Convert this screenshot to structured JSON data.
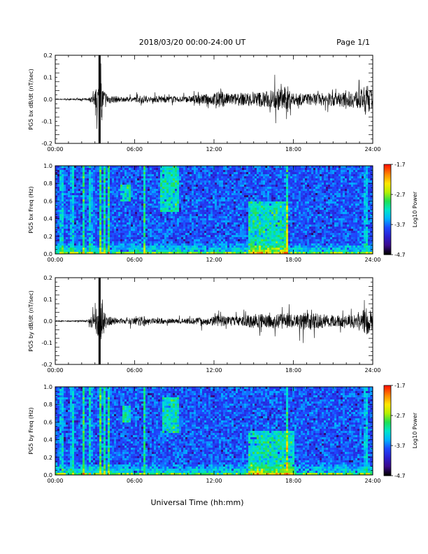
{
  "header": {
    "title": "2018/03/20  00:00-24:00 UT",
    "page": "Page 1/1"
  },
  "footer": {
    "xlabel": "Universal Time (hh:mm)"
  },
  "colors": {
    "trace": "#000000",
    "background": "#ffffff",
    "colormap": [
      "#000000",
      "#3b0a8c",
      "#2a1fd0",
      "#1e48ff",
      "#00b4ff",
      "#00e6c8",
      "#20e050",
      "#b8f000",
      "#ffe600",
      "#ff8800",
      "#ff1a00"
    ]
  },
  "x_tick_labels": [
    "00:00",
    "06:00",
    "12:00",
    "18:00",
    "24:00"
  ],
  "chart_data": [
    {
      "type": "line",
      "ylabel": "PG5 bx dB/dt (nT/sec)",
      "xlim": [
        0,
        24
      ],
      "ylim": [
        -0.2,
        0.2
      ],
      "yticks": [
        "0.2",
        "0.1",
        "0.0",
        "-0.1",
        "-0.2"
      ],
      "ytick_values": [
        0.2,
        0.1,
        0.0,
        -0.1,
        -0.2
      ],
      "series": [
        {
          "x": [
            0,
            1,
            2,
            2.5,
            3.0,
            3.4,
            3.6,
            4.0,
            5,
            6.0,
            6.8,
            7,
            8,
            9,
            10,
            11,
            12,
            12.3,
            13,
            14,
            15,
            16,
            17.6,
            18,
            19,
            20,
            21,
            22,
            23,
            23.6,
            24
          ],
          "values": [
            0.004,
            0.006,
            0.008,
            0.01,
            0.06,
            0.2,
            0.1,
            0.04,
            0.02,
            0.02,
            0.04,
            0.02,
            0.03,
            0.025,
            0.025,
            0.04,
            0.05,
            0.08,
            0.05,
            0.05,
            0.06,
            0.07,
            0.11,
            0.05,
            0.05,
            0.05,
            0.06,
            0.06,
            0.08,
            0.12,
            0.07
          ]
        }
      ]
    },
    {
      "type": "heatmap",
      "ylabel": "PG5 bx Freq (Hz)",
      "xlim": [
        0,
        24
      ],
      "ylim": [
        0.0,
        1.0
      ],
      "yticks": [
        "1.0",
        "0.8",
        "0.6",
        "0.4",
        "0.2",
        "0.0"
      ],
      "ytick_values": [
        1.0,
        0.8,
        0.6,
        0.4,
        0.2,
        0.0
      ],
      "colorbar": {
        "label": "Log10 Power",
        "ticks": [
          "-1.7",
          "-2.7",
          "-3.7",
          "-4.7"
        ],
        "tick_values": [
          -1.7,
          -2.7,
          -3.7,
          -4.7
        ],
        "range": [
          -4.7,
          -1.7
        ]
      },
      "features": [
        {
          "desc": "broadband bursts",
          "x_hours": [
            0.4,
            1.2,
            2.1,
            2.6,
            3.3,
            3.6,
            4.0,
            6.7,
            17.4,
            23.4
          ]
        },
        {
          "desc": "enhanced band",
          "x_range": [
            14.5,
            17.5
          ],
          "y_range": [
            0.0,
            0.6
          ]
        },
        {
          "desc": "patch",
          "x_range": [
            4.9,
            5.6
          ],
          "y_range": [
            0.6,
            0.8
          ]
        },
        {
          "desc": "patch",
          "x_range": [
            7.8,
            9.2
          ],
          "y_range": [
            0.5,
            1.0
          ]
        }
      ]
    },
    {
      "type": "line",
      "ylabel": "PG5 by dB/dt (nT/sec)",
      "xlim": [
        0,
        24
      ],
      "ylim": [
        -0.2,
        0.2
      ],
      "yticks": [
        "0.2",
        "0.1",
        "0.0",
        "-0.1",
        "-0.2"
      ],
      "ytick_values": [
        0.2,
        0.1,
        0.0,
        -0.1,
        -0.2
      ],
      "series": [
        {
          "x": [
            0,
            1,
            2,
            2.5,
            3.0,
            3.4,
            3.6,
            4.0,
            5,
            6.0,
            6.8,
            7,
            8,
            9,
            10,
            11,
            12,
            12.3,
            13,
            14,
            15,
            16,
            17.6,
            18,
            19,
            20,
            21,
            22,
            23,
            23.6,
            24
          ],
          "values": [
            0.004,
            0.005,
            0.008,
            0.012,
            0.08,
            0.2,
            0.1,
            0.04,
            0.02,
            0.03,
            0.05,
            0.02,
            0.025,
            0.02,
            0.025,
            0.03,
            0.04,
            0.05,
            0.04,
            0.04,
            0.06,
            0.06,
            0.07,
            0.05,
            0.08,
            0.06,
            0.05,
            0.05,
            0.07,
            0.12,
            0.08
          ]
        }
      ]
    },
    {
      "type": "heatmap",
      "ylabel": "PG5 by Freq (Hz)",
      "xlim": [
        0,
        24
      ],
      "ylim": [
        0.0,
        1.0
      ],
      "yticks": [
        "1.0",
        "0.8",
        "0.6",
        "0.4",
        "0.2",
        "0.0"
      ],
      "ytick_values": [
        1.0,
        0.8,
        0.6,
        0.4,
        0.2,
        0.0
      ],
      "colorbar": {
        "label": "Log10 Power",
        "ticks": [
          "-1.7",
          "-2.7",
          "-3.7",
          "-4.7"
        ],
        "tick_values": [
          -1.7,
          -2.7,
          -3.7,
          -4.7
        ],
        "range": [
          -4.7,
          -1.7
        ]
      },
      "features": [
        {
          "desc": "broadband bursts",
          "x_hours": [
            0.4,
            1.2,
            2.1,
            2.6,
            3.3,
            3.6,
            4.0,
            6.7,
            17.4,
            23.4
          ]
        },
        {
          "desc": "enhanced band",
          "x_range": [
            14.5,
            18.0
          ],
          "y_range": [
            0.0,
            0.5
          ]
        },
        {
          "desc": "patch",
          "x_range": [
            5.0,
            5.7
          ],
          "y_range": [
            0.6,
            0.8
          ]
        },
        {
          "desc": "patch",
          "x_range": [
            8.0,
            9.3
          ],
          "y_range": [
            0.5,
            0.9
          ]
        }
      ]
    }
  ]
}
